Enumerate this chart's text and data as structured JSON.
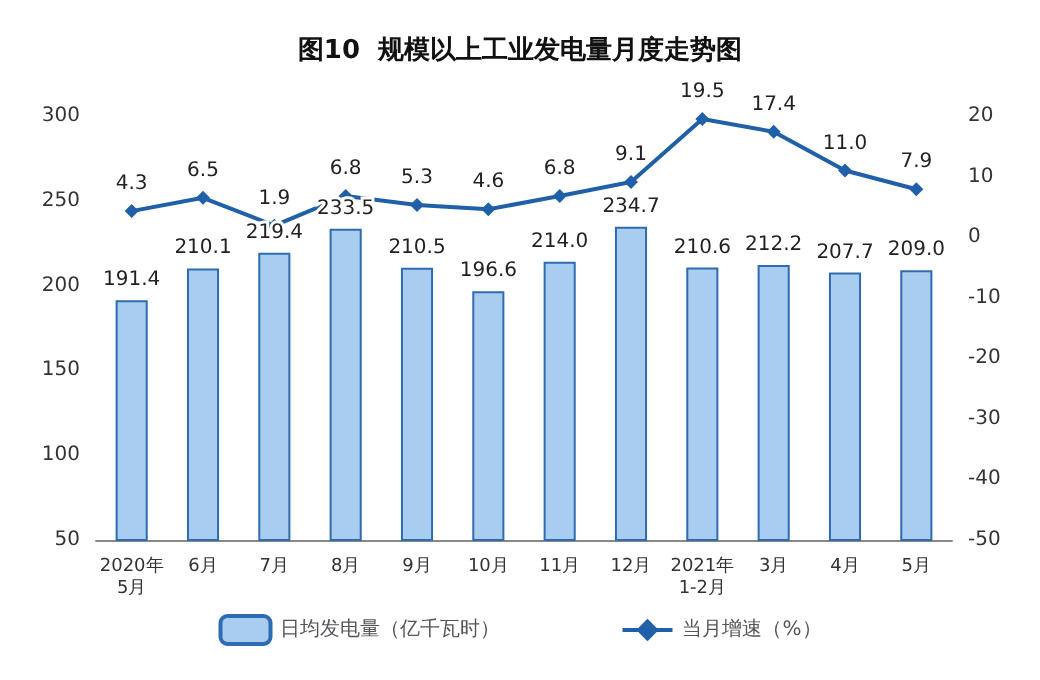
{
  "chart_data": {
    "type": "bar",
    "title": "图10  规模以上工业发电量月度走势图",
    "categories": [
      "2020年\n5月",
      "6月",
      "7月",
      "8月",
      "9月",
      "10月",
      "11月",
      "12月",
      "2021年\n1-2月",
      "3月",
      "4月",
      "5月"
    ],
    "series": [
      {
        "name": "日均发电量（亿千瓦时）",
        "color": "#a9cdf0",
        "values": [
          191.4,
          210.1,
          219.4,
          233.5,
          210.5,
          196.6,
          214.0,
          234.7,
          210.6,
          212.2,
          207.7,
          209.0
        ],
        "value_labels": [
          "191.4",
          "210.1",
          "219.4",
          "233.5",
          "210.5",
          "196.6",
          "214.0",
          "234.7",
          "210.6",
          "212.2",
          "207.7",
          "209.0"
        ]
      },
      {
        "name": "当月增速（%）",
        "type": "line",
        "axis": "y2",
        "color": "#2060a8",
        "marker": "diamond",
        "values": [
          4.3,
          6.5,
          1.9,
          6.8,
          5.3,
          4.6,
          6.8,
          9.1,
          19.5,
          17.4,
          11.0,
          7.9
        ],
        "value_labels": [
          "4.3",
          "6.5",
          "1.9",
          "6.8",
          "5.3",
          "4.6",
          "6.8",
          "9.1",
          "19.5",
          "17.4",
          "11.0",
          "7.9"
        ]
      }
    ],
    "ylim": [
      50,
      300
    ],
    "yticks": [
      50,
      100,
      150,
      200,
      250,
      300
    ],
    "y2lim": [
      -50,
      20
    ],
    "y2ticks": [
      -50,
      -40,
      -30,
      -20,
      -10,
      0,
      10,
      20
    ],
    "grid": false,
    "legend": "bottom"
  }
}
